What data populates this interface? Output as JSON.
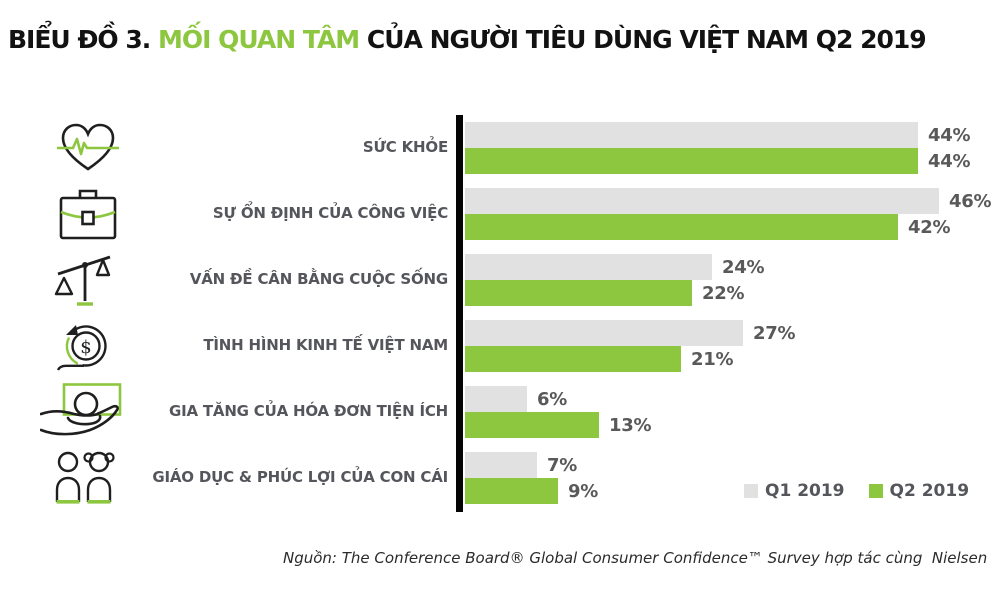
{
  "title": {
    "part1": "BIỂU ĐỒ 3. ",
    "highlight": "MỐI QUAN TÂM",
    "part2": " CỦA NGƯỜI TIÊU DÙNG VIỆT NAM Q2 2019"
  },
  "source": {
    "text": "Nguồn: The Conference Board® Global Consumer Confidence™ Survey hợp tác cùng  Nielsen"
  },
  "colors": {
    "q1_bar": "#E1E1E1",
    "q2_bar": "#8DC63F",
    "axis": "#050505",
    "category_text": "#54565B",
    "value_text": "#595959",
    "title_text": "#121212",
    "title_highlight": "#8DC63F"
  },
  "icons": [
    "heart-ecg-icon",
    "briefcase-icon",
    "balance-scales-icon",
    "dollar-cycle-icon",
    "hand-money-icon",
    "children-icon"
  ],
  "chart_data": {
    "type": "bar",
    "orientation": "horizontal",
    "title": "BIỂU ĐỒ 3. MỐI QUAN TÂM CỦA NGƯỜI TIÊU DÙNG VIỆT NAM Q2 2019",
    "categories": [
      "SỨC KHỎE",
      "SỰ ỔN ĐỊNH CỦA CÔNG VIỆC",
      "VẤN ĐỀ CÂN BẰNG CUỘC SỐNG",
      "TÌNH HÌNH KINH TẾ VIỆT NAM",
      "GIA TĂNG CỦA HÓA ĐƠN TIỆN ÍCH",
      "GIÁO DỤC & PHÚC LỢI CỦA CON CÁI"
    ],
    "series": [
      {
        "name": "Q1 2019",
        "color": "#E1E1E1",
        "values": [
          44,
          46,
          24,
          27,
          6,
          7
        ],
        "labels": [
          "44%",
          "46%",
          "24%",
          "27%",
          "6%",
          "7%"
        ]
      },
      {
        "name": "Q2 2019",
        "color": "#8DC63F",
        "values": [
          44,
          42,
          22,
          21,
          13,
          9
        ],
        "labels": [
          "44%",
          "42%",
          "22%",
          "21%",
          "13%",
          "9%"
        ]
      }
    ],
    "value_suffix": "%",
    "xlim": [
      0,
      50
    ],
    "grid": false,
    "legend_position": "bottom-right"
  }
}
